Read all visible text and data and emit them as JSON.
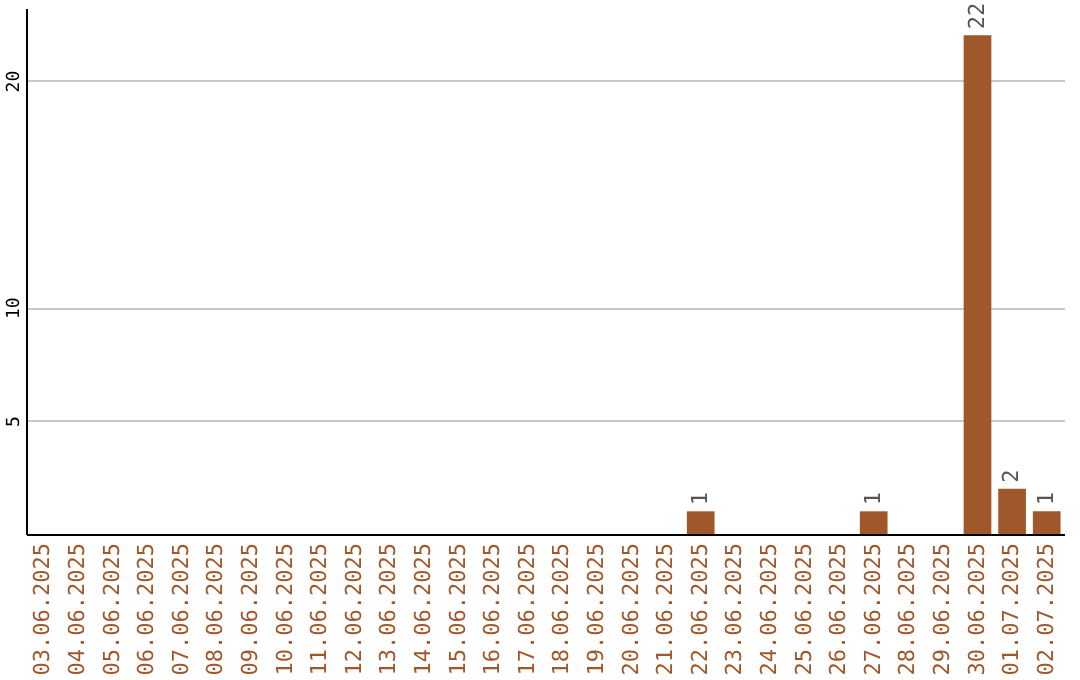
{
  "chart_data": {
    "type": "bar",
    "categories": [
      "03.06.2025",
      "04.06.2025",
      "05.06.2025",
      "06.06.2025",
      "07.06.2025",
      "08.06.2025",
      "09.06.2025",
      "10.06.2025",
      "11.06.2025",
      "12.06.2025",
      "13.06.2025",
      "14.06.2025",
      "15.06.2025",
      "16.06.2025",
      "17.06.2025",
      "18.06.2025",
      "19.06.2025",
      "20.06.2025",
      "21.06.2025",
      "22.06.2025",
      "23.06.2025",
      "24.06.2025",
      "25.06.2025",
      "26.06.2025",
      "27.06.2025",
      "28.06.2025",
      "29.06.2025",
      "30.06.2025",
      "01.07.2025",
      "02.07.2025"
    ],
    "values": [
      0,
      0,
      0,
      0,
      0,
      0,
      0,
      0,
      0,
      0,
      0,
      0,
      0,
      0,
      0,
      0,
      0,
      0,
      0,
      1,
      0,
      0,
      0,
      0,
      1,
      0,
      0,
      22,
      2,
      1
    ],
    "value_labels": [
      null,
      null,
      null,
      null,
      null,
      null,
      null,
      null,
      null,
      null,
      null,
      null,
      null,
      null,
      null,
      null,
      null,
      null,
      null,
      "1",
      null,
      null,
      null,
      null,
      "1",
      null,
      null,
      "22",
      "2",
      "1"
    ],
    "color": "#a0572a",
    "ylim": [
      0,
      23.2
    ],
    "yticks": [
      5,
      10,
      20
    ],
    "grid": "y"
  }
}
